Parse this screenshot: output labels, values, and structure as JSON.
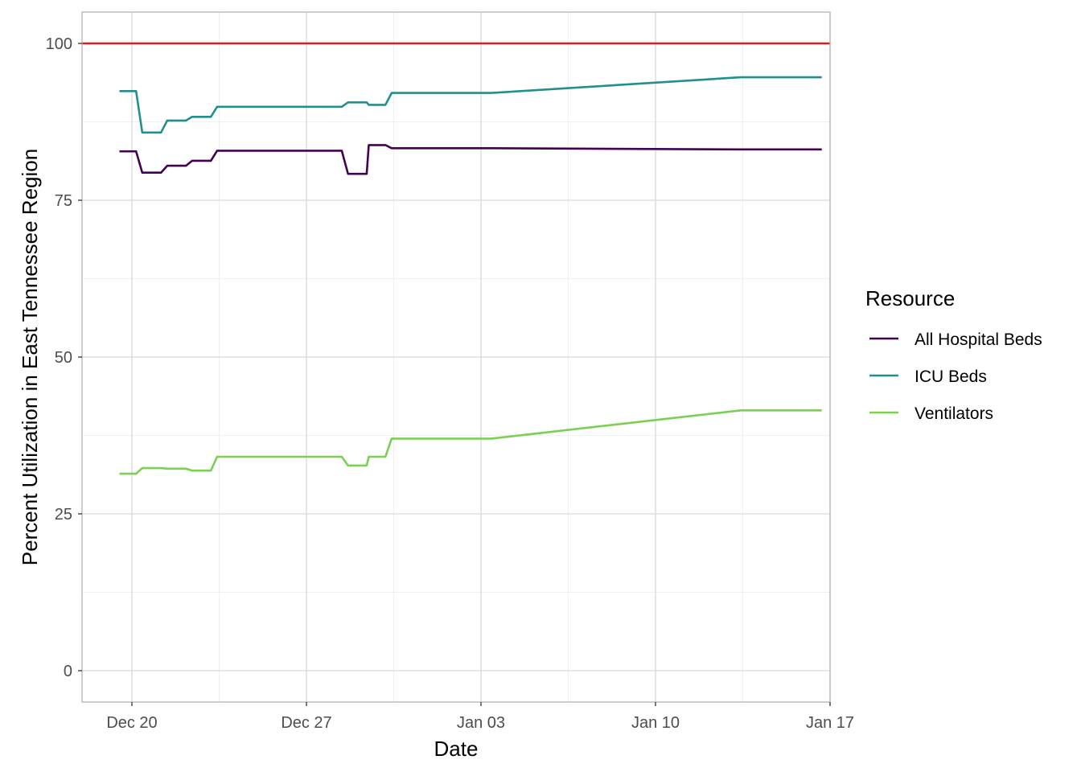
{
  "chart_data": {
    "type": "line",
    "xlabel": "Date",
    "ylabel": "Percent Utilization in East Tennessee Region",
    "x_type": "date",
    "xlim": [
      "2020-12-18",
      "2021-01-17"
    ],
    "ylim": [
      -5,
      105
    ],
    "x_ticks": [
      {
        "date": "2020-12-20",
        "label": "Dec 20"
      },
      {
        "date": "2020-12-27",
        "label": "Dec 27"
      },
      {
        "date": "2021-01-03",
        "label": "Jan 03"
      },
      {
        "date": "2021-01-10",
        "label": "Jan 10"
      },
      {
        "date": "2021-01-17",
        "label": "Jan 17"
      }
    ],
    "y_ticks": [
      0,
      25,
      50,
      75,
      100
    ],
    "reference_line": {
      "y": 100,
      "color": "#e31a1c"
    },
    "grid": true,
    "legend": {
      "title": "Resource",
      "position": "right"
    },
    "series": [
      {
        "name": "All Hospital Beds",
        "color": "#440154",
        "points": [
          [
            "2020-12-19 12:00",
            82.8
          ],
          [
            "2020-12-20 04:00",
            82.8
          ],
          [
            "2020-12-20 10:00",
            79.4
          ],
          [
            "2020-12-21 04:00",
            79.4
          ],
          [
            "2020-12-21 10:00",
            80.5
          ],
          [
            "2020-12-22 04:00",
            80.5
          ],
          [
            "2020-12-22 10:00",
            81.3
          ],
          [
            "2020-12-23 04:00",
            81.3
          ],
          [
            "2020-12-23 10:00",
            82.9
          ],
          [
            "2020-12-28 10:00",
            82.9
          ],
          [
            "2020-12-28 16:00",
            79.2
          ],
          [
            "2020-12-29 10:00",
            79.2
          ],
          [
            "2020-12-29 12:00",
            83.8
          ],
          [
            "2020-12-30 04:00",
            83.8
          ],
          [
            "2020-12-30 10:00",
            83.3
          ],
          [
            "2021-01-03 10:00",
            83.3
          ],
          [
            "2021-01-13 10:00",
            83.1
          ],
          [
            "2021-01-16 16:00",
            83.1
          ]
        ]
      },
      {
        "name": "ICU Beds",
        "color": "#21908c",
        "points": [
          [
            "2020-12-19 12:00",
            92.4
          ],
          [
            "2020-12-20 04:00",
            92.4
          ],
          [
            "2020-12-20 10:00",
            85.8
          ],
          [
            "2020-12-21 04:00",
            85.8
          ],
          [
            "2020-12-21 10:00",
            87.7
          ],
          [
            "2020-12-22 04:00",
            87.7
          ],
          [
            "2020-12-22 10:00",
            88.3
          ],
          [
            "2020-12-23 04:00",
            88.3
          ],
          [
            "2020-12-23 10:00",
            89.9
          ],
          [
            "2020-12-28 10:00",
            89.9
          ],
          [
            "2020-12-28 16:00",
            90.6
          ],
          [
            "2020-12-29 10:00",
            90.6
          ],
          [
            "2020-12-29 12:00",
            90.2
          ],
          [
            "2020-12-30 04:00",
            90.2
          ],
          [
            "2020-12-30 10:00",
            92.1
          ],
          [
            "2021-01-03 10:00",
            92.1
          ],
          [
            "2021-01-13 10:00",
            94.6
          ],
          [
            "2021-01-16 16:00",
            94.6
          ]
        ]
      },
      {
        "name": "Ventilators",
        "color": "#7ad151",
        "points": [
          [
            "2020-12-19 12:00",
            31.4
          ],
          [
            "2020-12-20 04:00",
            31.4
          ],
          [
            "2020-12-20 10:00",
            32.3
          ],
          [
            "2020-12-21 04:00",
            32.3
          ],
          [
            "2020-12-21 10:00",
            32.2
          ],
          [
            "2020-12-22 04:00",
            32.2
          ],
          [
            "2020-12-22 10:00",
            31.9
          ],
          [
            "2020-12-23 04:00",
            31.9
          ],
          [
            "2020-12-23 10:00",
            34.1
          ],
          [
            "2020-12-28 10:00",
            34.1
          ],
          [
            "2020-12-28 16:00",
            32.7
          ],
          [
            "2020-12-29 10:00",
            32.7
          ],
          [
            "2020-12-29 12:00",
            34.1
          ],
          [
            "2020-12-30 04:00",
            34.1
          ],
          [
            "2020-12-30 10:00",
            37.0
          ],
          [
            "2021-01-03 10:00",
            37.0
          ],
          [
            "2021-01-13 10:00",
            41.5
          ],
          [
            "2021-01-16 16:00",
            41.5
          ]
        ]
      }
    ]
  }
}
